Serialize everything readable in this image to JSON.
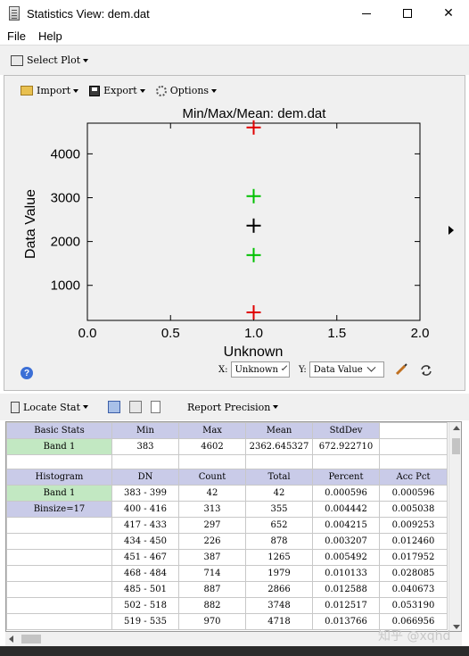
{
  "window": {
    "title": "Statistics View: dem.dat"
  },
  "menu": {
    "file": "File",
    "help": "Help"
  },
  "select_plot": {
    "label": "Select Plot"
  },
  "plot_toolbar": {
    "import": "Import",
    "export": "Export",
    "options": "Options"
  },
  "chart_data": {
    "type": "scatter",
    "title": "Min/Max/Mean: dem.dat",
    "xlabel": "Unknown",
    "ylabel": "Data Value",
    "xlim": [
      0.0,
      2.0
    ],
    "ylim": [
      200,
      4700
    ],
    "x_ticks": [
      "0.0",
      "0.5",
      "1.0",
      "1.5",
      "2.0"
    ],
    "y_ticks": [
      "1000",
      "2000",
      "3000",
      "4000"
    ],
    "x_tick_values": [
      0.0,
      0.5,
      1.0,
      1.5,
      2.0
    ],
    "y_tick_values": [
      1000,
      2000,
      3000,
      4000
    ],
    "series": [
      {
        "x": 1.0,
        "y": 4602,
        "color": "#e00000"
      },
      {
        "x": 1.0,
        "y": 3035,
        "color": "#00c000"
      },
      {
        "x": 1.0,
        "y": 2362.6,
        "color": "#000000"
      },
      {
        "x": 1.0,
        "y": 1690,
        "color": "#00c000"
      },
      {
        "x": 1.0,
        "y": 383,
        "color": "#e00000"
      }
    ]
  },
  "axis_controls": {
    "x_label": "X:",
    "x_value": "Unknown",
    "y_label": "Y:",
    "y_value": "Data Value"
  },
  "stat_toolbar": {
    "locate_stat": "Locate Stat",
    "report_precision": "Report Precision"
  },
  "basic_stats": {
    "headers": [
      "Basic Stats",
      "Min",
      "Max",
      "Mean",
      "StdDev"
    ],
    "row": [
      "Band 1",
      "383",
      "4602",
      "2362.645327",
      "672.922710"
    ]
  },
  "histogram": {
    "headers": [
      "Histogram",
      "DN",
      "Count",
      "Total",
      "Percent",
      "Acc Pct"
    ],
    "labels": [
      "Band 1",
      "Binsize=17"
    ],
    "rows": [
      [
        "383 - 399",
        "42",
        "42",
        "0.000596",
        "0.000596"
      ],
      [
        "400 - 416",
        "313",
        "355",
        "0.004442",
        "0.005038"
      ],
      [
        "417 - 433",
        "297",
        "652",
        "0.004215",
        "0.009253"
      ],
      [
        "434 - 450",
        "226",
        "878",
        "0.003207",
        "0.012460"
      ],
      [
        "451 - 467",
        "387",
        "1265",
        "0.005492",
        "0.017952"
      ],
      [
        "468 - 484",
        "714",
        "1979",
        "0.010133",
        "0.028085"
      ],
      [
        "485 - 501",
        "887",
        "2866",
        "0.012588",
        "0.040673"
      ],
      [
        "502 - 518",
        "882",
        "3748",
        "0.012517",
        "0.053190"
      ],
      [
        "519 - 535",
        "970",
        "4718",
        "0.013766",
        "0.066956"
      ]
    ]
  },
  "watermark": "知乎 @xqhd"
}
